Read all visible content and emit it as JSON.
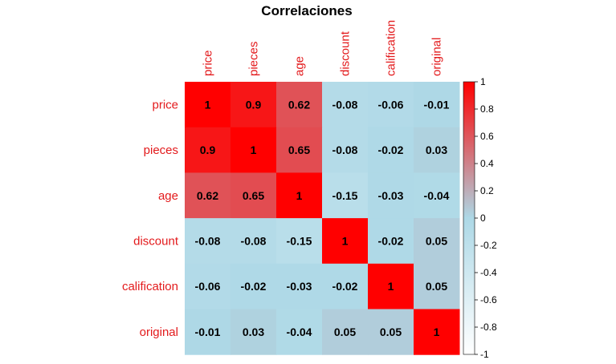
{
  "chart_data": {
    "type": "heatmap",
    "title": "Correlaciones",
    "variables": [
      "price",
      "pieces",
      "age",
      "discount",
      "calification",
      "original"
    ],
    "matrix": [
      [
        1,
        0.9,
        0.62,
        -0.08,
        -0.06,
        -0.01
      ],
      [
        0.9,
        1,
        0.65,
        -0.08,
        -0.02,
        0.03
      ],
      [
        0.62,
        0.65,
        1,
        -0.15,
        -0.03,
        -0.04
      ],
      [
        -0.08,
        -0.08,
        -0.15,
        1,
        -0.02,
        0.05
      ],
      [
        -0.06,
        -0.02,
        -0.03,
        -0.02,
        1,
        0.05
      ],
      [
        -0.01,
        0.03,
        -0.04,
        0.05,
        0.05,
        1
      ]
    ],
    "color_scale": {
      "min": -1,
      "max": 1,
      "low_color": "#ffffff",
      "mid_color": "#add8e6",
      "high_color": "#ff0000"
    },
    "colorbar_ticks": [
      "1",
      "0.8",
      "0.6",
      "0.4",
      "0.2",
      "0",
      "-0.2",
      "-0.4",
      "-0.6",
      "-0.8",
      "-1"
    ],
    "label_color": "#e31a1c",
    "legend_position": "right"
  }
}
